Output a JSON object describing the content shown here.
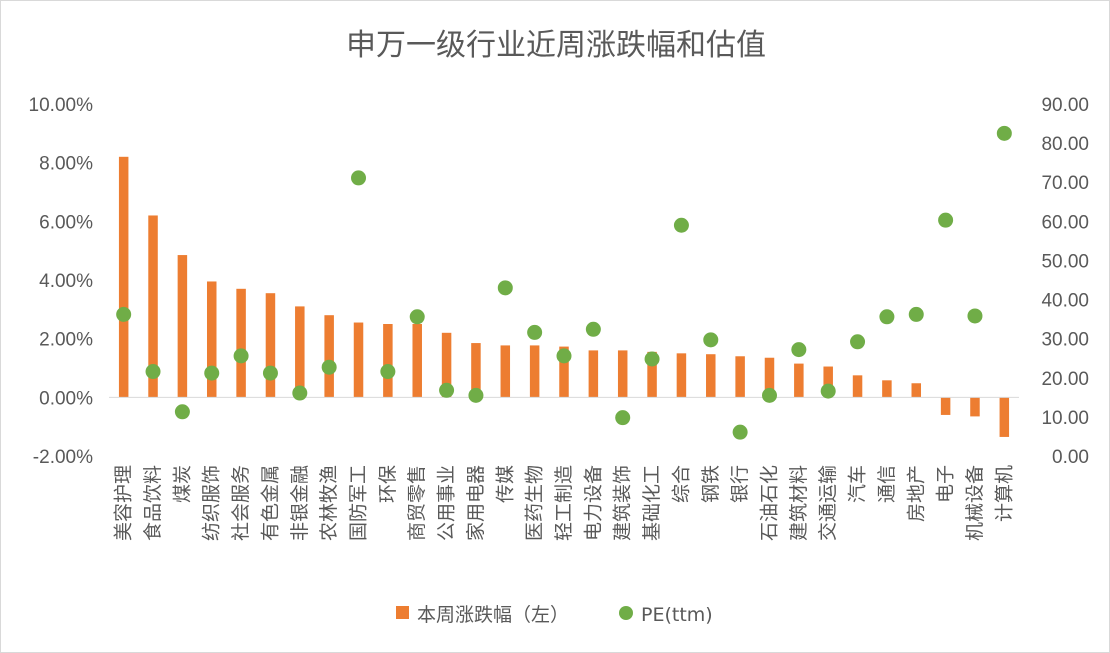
{
  "chart_data": {
    "type": "bar",
    "title": "申万一级行业近周涨跌幅和估值",
    "categories": [
      "美容护理",
      "食品饮料",
      "煤炭",
      "纺织服饰",
      "社会服务",
      "有色金属",
      "非银金融",
      "农林牧渔",
      "国防军工",
      "环保",
      "商贸零售",
      "公用事业",
      "家用电器",
      "传媒",
      "医药生物",
      "轻工制造",
      "电力设备",
      "建筑装饰",
      "基础化工",
      "综合",
      "钢铁",
      "银行",
      "石油石化",
      "建筑材料",
      "交通运输",
      "汽车",
      "通信",
      "房地产",
      "电子",
      "机械设备",
      "计算机"
    ],
    "series": [
      {
        "name": "本周涨跌幅（左）",
        "type": "bar",
        "axis": "left",
        "color": "#ED7D31",
        "values": [
          8.2,
          6.2,
          4.85,
          3.95,
          3.7,
          3.55,
          3.1,
          2.8,
          2.55,
          2.5,
          2.5,
          2.2,
          1.85,
          1.77,
          1.77,
          1.73,
          1.6,
          1.6,
          1.55,
          1.5,
          1.47,
          1.4,
          1.35,
          1.15,
          1.05,
          0.75,
          0.58,
          0.48,
          -0.6,
          -0.65,
          -1.35
        ]
      },
      {
        "name": "PE(ttm)",
        "type": "scatter",
        "axis": "right",
        "color": "#70AD47",
        "values": [
          36.2,
          21.6,
          11.3,
          21.2,
          25.6,
          21.2,
          16.1,
          22.7,
          71.1,
          21.6,
          35.6,
          16.8,
          15.5,
          43.0,
          31.6,
          25.6,
          32.4,
          9.8,
          24.8,
          59.0,
          29.7,
          6.1,
          15.5,
          27.2,
          16.6,
          29.2,
          35.6,
          36.2,
          60.3,
          35.8,
          82.5
        ]
      }
    ],
    "yaxis_left": {
      "min": -2,
      "max": 10,
      "step": 2,
      "tick_labels": [
        "-2.00%",
        "0.00%",
        "2.00%",
        "4.00%",
        "6.00%",
        "8.00%",
        "10.00%"
      ]
    },
    "yaxis_right": {
      "min": 0,
      "max": 90,
      "step": 10,
      "tick_labels": [
        "0.00",
        "10.00",
        "20.00",
        "30.00",
        "40.00",
        "50.00",
        "60.00",
        "70.00",
        "80.00",
        "90.00"
      ]
    },
    "grid": false,
    "legend": {
      "position": "bottom",
      "items": [
        "本周涨跌幅（左）",
        "PE(ttm)"
      ]
    }
  }
}
